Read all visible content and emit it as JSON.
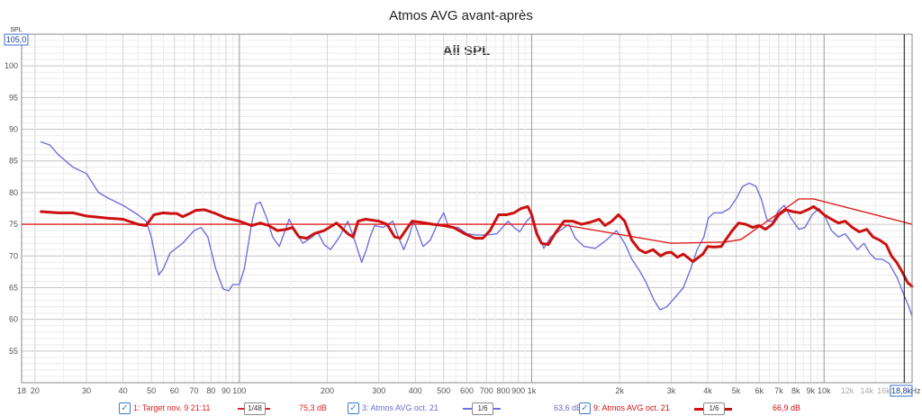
{
  "chart_data": {
    "type": "line",
    "title": "Atmos AVG avant-après",
    "subtitle": "All SPL",
    "xlabel": "Hz",
    "ylabel": "SPL",
    "x_scale": "log",
    "xlim": [
      18,
      20000
    ],
    "ylim": [
      50,
      105
    ],
    "y_top_label": "105,0",
    "x_end_label": "18,8k",
    "cursor_x": 18800,
    "yticks": [
      55,
      60,
      65,
      70,
      75,
      80,
      85,
      90,
      95,
      100
    ],
    "xtick_labels": [
      {
        "v": 18,
        "t": "18"
      },
      {
        "v": 20,
        "t": "20"
      },
      {
        "v": 30,
        "t": "30"
      },
      {
        "v": 40,
        "t": "40"
      },
      {
        "v": 50,
        "t": "50"
      },
      {
        "v": 60,
        "t": "60"
      },
      {
        "v": 70,
        "t": "70"
      },
      {
        "v": 80,
        "t": "80"
      },
      {
        "v": 90,
        "t": "90"
      },
      {
        "v": 100,
        "t": "100"
      },
      {
        "v": 200,
        "t": "200"
      },
      {
        "v": 300,
        "t": "300"
      },
      {
        "v": 400,
        "t": "400"
      },
      {
        "v": 500,
        "t": "500"
      },
      {
        "v": 600,
        "t": "600"
      },
      {
        "v": 700,
        "t": "700"
      },
      {
        "v": 800,
        "t": "800"
      },
      {
        "v": 900,
        "t": "900"
      },
      {
        "v": 1000,
        "t": "1k"
      },
      {
        "v": 2000,
        "t": "2k"
      },
      {
        "v": 3000,
        "t": "3k"
      },
      {
        "v": 4000,
        "t": "4k"
      },
      {
        "v": 5000,
        "t": "5k"
      },
      {
        "v": 6000,
        "t": "6k"
      },
      {
        "v": 7000,
        "t": "7k"
      },
      {
        "v": 8000,
        "t": "8k"
      },
      {
        "v": 9000,
        "t": "9k"
      },
      {
        "v": 10000,
        "t": "10k"
      },
      {
        "v": 12000,
        "t": "12k"
      },
      {
        "v": 14000,
        "t": "14k"
      },
      {
        "v": 16000,
        "t": "16k"
      }
    ],
    "grid": true,
    "legend_position": "bottom",
    "series": [
      {
        "name": "1: Target nov. 9 21:11",
        "color": "#e02020",
        "smoothing": "1/48",
        "level": "75,3 dB",
        "points": [
          [
            18,
            75
          ],
          [
            1250,
            75
          ],
          [
            3000,
            72
          ],
          [
            4600,
            72.2
          ],
          [
            5200,
            72.6
          ],
          [
            8200,
            79
          ],
          [
            9200,
            79
          ],
          [
            20000,
            75
          ]
        ]
      },
      {
        "name": "3: Atmos AVG oct. 21",
        "color": "#7070dd",
        "smoothing": "1/6",
        "level": "63,6 dB",
        "points": [
          [
            21,
            88
          ],
          [
            22.5,
            87.5
          ],
          [
            24,
            86
          ],
          [
            27,
            84
          ],
          [
            30,
            83
          ],
          [
            33,
            80
          ],
          [
            36,
            79
          ],
          [
            40,
            78
          ],
          [
            45,
            76.5
          ],
          [
            48,
            75.5
          ],
          [
            50,
            73
          ],
          [
            53,
            67
          ],
          [
            55,
            68
          ],
          [
            58,
            70.5
          ],
          [
            64,
            72
          ],
          [
            70,
            74
          ],
          [
            74,
            74.5
          ],
          [
            78,
            73
          ],
          [
            83,
            68
          ],
          [
            88,
            64.8
          ],
          [
            92,
            64.5
          ],
          [
            95,
            65.5
          ],
          [
            100,
            65.5
          ],
          [
            104,
            68
          ],
          [
            110,
            75
          ],
          [
            114,
            78.2
          ],
          [
            118,
            78.5
          ],
          [
            124,
            76
          ],
          [
            130,
            73
          ],
          [
            137,
            71.5
          ],
          [
            142,
            73.5
          ],
          [
            148,
            75.8
          ],
          [
            155,
            74
          ],
          [
            165,
            72
          ],
          [
            178,
            73
          ],
          [
            185,
            73.8
          ],
          [
            195,
            71.8
          ],
          [
            205,
            71
          ],
          [
            220,
            73
          ],
          [
            235,
            75.5
          ],
          [
            250,
            72
          ],
          [
            262,
            69
          ],
          [
            272,
            71
          ],
          [
            280,
            73
          ],
          [
            290,
            74.8
          ],
          [
            310,
            74.5
          ],
          [
            335,
            75.5
          ],
          [
            350,
            73
          ],
          [
            365,
            71
          ],
          [
            380,
            73
          ],
          [
            395,
            75.5
          ],
          [
            425,
            71.5
          ],
          [
            450,
            72.5
          ],
          [
            475,
            75
          ],
          [
            500,
            76.8
          ],
          [
            520,
            74.5
          ],
          [
            560,
            74.5
          ],
          [
            600,
            73.5
          ],
          [
            650,
            73.3
          ],
          [
            700,
            73.3
          ],
          [
            760,
            73.5
          ],
          [
            830,
            75.5
          ],
          [
            870,
            74.5
          ],
          [
            910,
            73.8
          ],
          [
            960,
            75.5
          ],
          [
            1000,
            76.3
          ],
          [
            1050,
            73.5
          ],
          [
            1100,
            71.2
          ],
          [
            1160,
            73
          ],
          [
            1250,
            74
          ],
          [
            1340,
            75
          ],
          [
            1410,
            72.8
          ],
          [
            1510,
            71.5
          ],
          [
            1650,
            71.2
          ],
          [
            1800,
            72.5
          ],
          [
            1950,
            74
          ],
          [
            2080,
            72
          ],
          [
            2200,
            69.5
          ],
          [
            2350,
            67.5
          ],
          [
            2450,
            66
          ],
          [
            2620,
            63
          ],
          [
            2750,
            61.5
          ],
          [
            2900,
            62
          ],
          [
            3100,
            63.5
          ],
          [
            3300,
            65
          ],
          [
            3500,
            68
          ],
          [
            3680,
            71
          ],
          [
            3880,
            73
          ],
          [
            4020,
            76
          ],
          [
            4200,
            76.8
          ],
          [
            4470,
            76.8
          ],
          [
            4750,
            77.5
          ],
          [
            5000,
            79
          ],
          [
            5270,
            81
          ],
          [
            5550,
            81.5
          ],
          [
            5850,
            81
          ],
          [
            6100,
            79
          ],
          [
            6400,
            75.5
          ],
          [
            6700,
            75.5
          ],
          [
            6950,
            77
          ],
          [
            7300,
            78
          ],
          [
            7700,
            76
          ],
          [
            8200,
            74.2
          ],
          [
            8600,
            74.5
          ],
          [
            9100,
            76.5
          ],
          [
            9600,
            77.5
          ],
          [
            10000,
            76.5
          ],
          [
            10600,
            74
          ],
          [
            11200,
            73
          ],
          [
            11800,
            73.5
          ],
          [
            12500,
            72
          ],
          [
            13000,
            71
          ],
          [
            13700,
            72
          ],
          [
            14300,
            70.5
          ],
          [
            15000,
            69.5
          ],
          [
            15800,
            69.5
          ],
          [
            16700,
            68.8
          ],
          [
            17800,
            66.5
          ],
          [
            18700,
            64
          ],
          [
            19500,
            62
          ],
          [
            20000,
            60.5
          ]
        ]
      },
      {
        "name": "9: Atmos AVG oct. 21",
        "color": "#cc1010",
        "smoothing": "1/6",
        "level": "66,9 dB",
        "points": [
          [
            21,
            77
          ],
          [
            24,
            76.8
          ],
          [
            27,
            76.8
          ],
          [
            30,
            76.3
          ],
          [
            35,
            76
          ],
          [
            40,
            75.8
          ],
          [
            45,
            75
          ],
          [
            48,
            74.8
          ],
          [
            51,
            76.5
          ],
          [
            55,
            76.8
          ],
          [
            58,
            76.7
          ],
          [
            61,
            76.7
          ],
          [
            64,
            76.2
          ],
          [
            67,
            76.6
          ],
          [
            71,
            77.2
          ],
          [
            76,
            77.3
          ],
          [
            83,
            76.7
          ],
          [
            90,
            76
          ],
          [
            100,
            75.5
          ],
          [
            110,
            74.8
          ],
          [
            118,
            75.2
          ],
          [
            126,
            74.8
          ],
          [
            135,
            74
          ],
          [
            145,
            74.2
          ],
          [
            152,
            74.5
          ],
          [
            160,
            73
          ],
          [
            170,
            72.8
          ],
          [
            180,
            73.5
          ],
          [
            195,
            74
          ],
          [
            215,
            75.2
          ],
          [
            235,
            73.5
          ],
          [
            245,
            73
          ],
          [
            255,
            75.5
          ],
          [
            270,
            75.8
          ],
          [
            300,
            75.5
          ],
          [
            320,
            75
          ],
          [
            340,
            73
          ],
          [
            355,
            72.8
          ],
          [
            370,
            74
          ],
          [
            390,
            75.5
          ],
          [
            420,
            75.3
          ],
          [
            460,
            75
          ],
          [
            500,
            74.8
          ],
          [
            540,
            74.5
          ],
          [
            590,
            73.5
          ],
          [
            640,
            72.8
          ],
          [
            680,
            72.8
          ],
          [
            720,
            74
          ],
          [
            770,
            76.5
          ],
          [
            820,
            76.5
          ],
          [
            870,
            76.8
          ],
          [
            920,
            77.5
          ],
          [
            970,
            77.8
          ],
          [
            1000,
            76.5
          ],
          [
            1040,
            73.5
          ],
          [
            1080,
            72
          ],
          [
            1140,
            71.8
          ],
          [
            1200,
            73.5
          ],
          [
            1290,
            75.5
          ],
          [
            1380,
            75.5
          ],
          [
            1480,
            75
          ],
          [
            1580,
            75.3
          ],
          [
            1700,
            75.8
          ],
          [
            1780,
            74.8
          ],
          [
            1880,
            75.5
          ],
          [
            1980,
            76.5
          ],
          [
            2080,
            75.5
          ],
          [
            2200,
            72.5
          ],
          [
            2330,
            71
          ],
          [
            2450,
            70.5
          ],
          [
            2600,
            71
          ],
          [
            2760,
            70
          ],
          [
            2880,
            70.5
          ],
          [
            3000,
            70.6
          ],
          [
            3150,
            69.8
          ],
          [
            3300,
            70.3
          ],
          [
            3450,
            69.6
          ],
          [
            3560,
            69.1
          ],
          [
            3700,
            69.7
          ],
          [
            3850,
            70.3
          ],
          [
            4000,
            71.5
          ],
          [
            4200,
            71.4
          ],
          [
            4450,
            71.5
          ],
          [
            4600,
            72.5
          ],
          [
            4850,
            74
          ],
          [
            5100,
            75.2
          ],
          [
            5400,
            75
          ],
          [
            5700,
            74.5
          ],
          [
            6000,
            74.8
          ],
          [
            6300,
            74.2
          ],
          [
            6650,
            75
          ],
          [
            7000,
            76.5
          ],
          [
            7400,
            77.3
          ],
          [
            7800,
            77
          ],
          [
            8300,
            76.8
          ],
          [
            8800,
            77.3
          ],
          [
            9200,
            77.8
          ],
          [
            9600,
            77.2
          ],
          [
            10000,
            76.5
          ],
          [
            10600,
            75.8
          ],
          [
            11200,
            75.2
          ],
          [
            11800,
            75.5
          ],
          [
            12500,
            74.5
          ],
          [
            13200,
            73.8
          ],
          [
            14000,
            74.2
          ],
          [
            14700,
            73
          ],
          [
            15500,
            72.5
          ],
          [
            16300,
            71.8
          ],
          [
            17000,
            70
          ],
          [
            17700,
            69
          ],
          [
            18500,
            67.5
          ],
          [
            19300,
            65.8
          ],
          [
            20000,
            65.2
          ]
        ]
      }
    ]
  },
  "legend": [
    {
      "check": "✓",
      "name": "1: Target nov. 9 21:11",
      "smoothing": "1/48",
      "level": "75,3 dB",
      "color": "#e02020"
    },
    {
      "check": "✓",
      "name": "3: Atmos AVG oct. 21",
      "smoothing": "1/6",
      "level": "63,6 dB",
      "color": "#7070dd"
    },
    {
      "check": "✓",
      "name": "9: Atmos AVG oct. 21",
      "smoothing": "1/6",
      "level": "66,9 dB",
      "color": "#cc1010"
    }
  ]
}
